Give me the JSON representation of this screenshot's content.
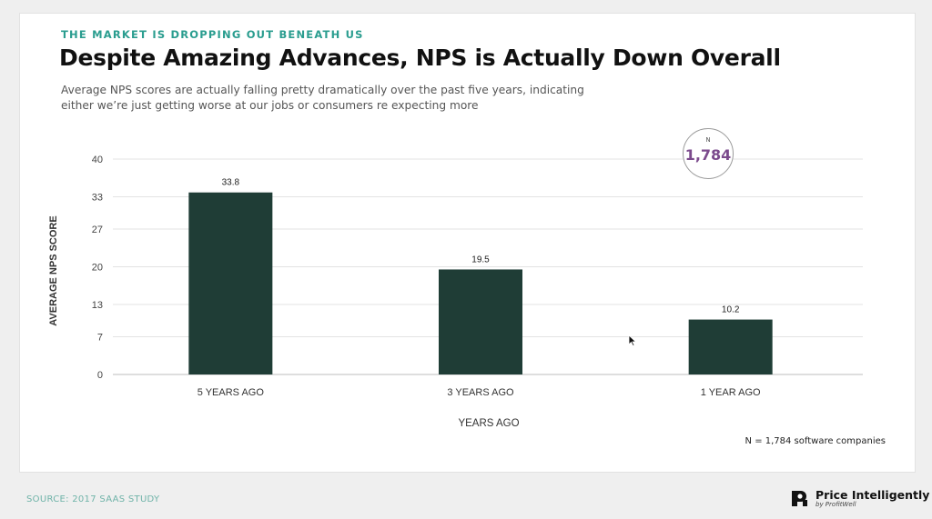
{
  "header": {
    "eyebrow": "THE MARKET IS DROPPING OUT BENEATH US",
    "title": "Despite Amazing Advances, NPS is Actually Down Overall",
    "subtitle": "Average NPS scores are actually falling pretty dramatically over the past five years, indicating either we’re just getting worse at our jobs or consumers re expecting more"
  },
  "n_badge": {
    "label": "N",
    "value": "1,784"
  },
  "chart_data": {
    "type": "bar",
    "categories": [
      "5 YEARS AGO",
      "3 YEARS AGO",
      "1 YEAR AGO"
    ],
    "values": [
      33.8,
      19.5,
      10.2
    ],
    "data_labels": [
      "33.8",
      "19.5",
      "10.2"
    ],
    "xlabel": "YEARS AGO",
    "ylabel": "AVERAGE NPS SCORE",
    "ylim": [
      0,
      40
    ],
    "yticks": [
      0,
      7,
      13,
      20,
      27,
      33,
      40
    ],
    "grid": true,
    "bar_color": "#1f3d36"
  },
  "footnote": "N = 1,784 software companies",
  "source": "SOURCE: 2017 SAAS STUDY",
  "brand": {
    "name": "Price Intelligently",
    "sub": "by ProfitWell"
  },
  "colors": {
    "accent": "#2a9d8f",
    "n_value": "#7b4a8c",
    "bar": "#1f3d36"
  }
}
